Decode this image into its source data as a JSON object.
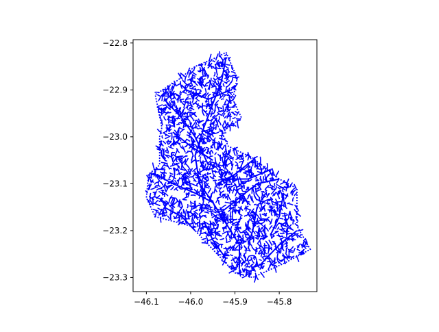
{
  "chart_data": {
    "type": "map",
    "xlabel": "",
    "ylabel": "",
    "xlim": [
      -46.13,
      -45.715
    ],
    "ylim": [
      -23.33,
      -22.793
    ],
    "x_ticks": [
      {
        "value": -46.1,
        "label": "−46.1"
      },
      {
        "value": -46.0,
        "label": "−46.0"
      },
      {
        "value": -45.9,
        "label": "−45.9"
      },
      {
        "value": -45.8,
        "label": "−45.8"
      }
    ],
    "y_ticks": [
      {
        "value": -22.8,
        "label": "−22.8"
      },
      {
        "value": -22.9,
        "label": "−22.9"
      },
      {
        "value": -23.0,
        "label": "−23.0"
      },
      {
        "value": -23.1,
        "label": "−23.1"
      },
      {
        "value": -23.2,
        "label": "−23.2"
      },
      {
        "value": -23.3,
        "label": "−23.3"
      }
    ],
    "grid": false,
    "line_color": "#0000ff",
    "outline": [
      [
        -45.92,
        -22.82
      ],
      [
        -45.895,
        -22.875
      ],
      [
        -45.905,
        -22.92
      ],
      [
        -45.885,
        -22.96
      ],
      [
        -45.93,
        -22.99
      ],
      [
        -45.915,
        -23.02
      ],
      [
        -45.86,
        -23.045
      ],
      [
        -45.8,
        -23.09
      ],
      [
        -45.76,
        -23.11
      ],
      [
        -45.76,
        -23.19
      ],
      [
        -45.73,
        -23.24
      ],
      [
        -45.79,
        -23.27
      ],
      [
        -45.86,
        -23.3
      ],
      [
        -45.9,
        -23.29
      ],
      [
        -45.95,
        -23.24
      ],
      [
        -45.99,
        -23.2
      ],
      [
        -46.0,
        -23.19
      ],
      [
        -46.08,
        -23.17
      ],
      [
        -46.1,
        -23.13
      ],
      [
        -46.095,
        -23.08
      ],
      [
        -46.07,
        -23.06
      ],
      [
        -46.07,
        -23.0
      ],
      [
        -46.065,
        -22.98
      ],
      [
        -46.08,
        -22.91
      ],
      [
        -46.03,
        -22.88
      ],
      [
        -45.99,
        -22.85
      ],
      [
        -45.94,
        -22.83
      ],
      [
        -45.92,
        -22.82
      ]
    ],
    "rivers": [
      [
        [
          -45.92,
          -22.83
        ],
        [
          -45.93,
          -22.88
        ],
        [
          -45.95,
          -22.93
        ],
        [
          -45.97,
          -22.98
        ],
        [
          -45.99,
          -23.04
        ],
        [
          -45.98,
          -23.1
        ],
        [
          -45.95,
          -23.14
        ]
      ],
      [
        [
          -46.06,
          -22.92
        ],
        [
          -46.02,
          -22.96
        ],
        [
          -45.99,
          -23.0
        ],
        [
          -45.96,
          -23.06
        ]
      ],
      [
        [
          -46.08,
          -23.08
        ],
        [
          -46.04,
          -23.1
        ],
        [
          -45.99,
          -23.12
        ],
        [
          -45.95,
          -23.14
        ],
        [
          -45.93,
          -23.17
        ]
      ],
      [
        [
          -45.8,
          -23.09
        ],
        [
          -45.85,
          -23.1
        ],
        [
          -45.89,
          -23.13
        ],
        [
          -45.93,
          -23.16
        ]
      ],
      [
        [
          -45.93,
          -23.17
        ],
        [
          -45.91,
          -23.2
        ],
        [
          -45.89,
          -23.23
        ],
        [
          -45.89,
          -23.28
        ]
      ],
      [
        [
          -45.97,
          -23.18
        ],
        [
          -45.95,
          -23.22
        ],
        [
          -45.92,
          -23.26
        ]
      ],
      [
        [
          -45.85,
          -23.15
        ],
        [
          -45.86,
          -23.2
        ],
        [
          -45.87,
          -23.23
        ]
      ],
      [
        [
          -45.79,
          -23.12
        ],
        [
          -45.8,
          -23.17
        ],
        [
          -45.82,
          -23.21
        ]
      ],
      [
        [
          -45.76,
          -23.2
        ],
        [
          -45.8,
          -23.23
        ],
        [
          -45.84,
          -23.27
        ]
      ],
      [
        [
          -46.06,
          -23.15
        ],
        [
          -46.02,
          -23.17
        ],
        [
          -45.99,
          -23.2
        ]
      ],
      [
        [
          -46.04,
          -22.99
        ],
        [
          -46.0,
          -23.02
        ],
        [
          -45.95,
          -23.05
        ]
      ],
      [
        [
          -45.91,
          -22.9
        ],
        [
          -45.96,
          -22.92
        ],
        [
          -46.01,
          -22.9
        ]
      ],
      [
        [
          -45.86,
          -23.05
        ],
        [
          -45.9,
          -23.08
        ],
        [
          -45.94,
          -23.1
        ]
      ],
      [
        [
          -45.82,
          -23.07
        ],
        [
          -45.87,
          -23.09
        ],
        [
          -45.93,
          -23.09
        ]
      ]
    ]
  }
}
